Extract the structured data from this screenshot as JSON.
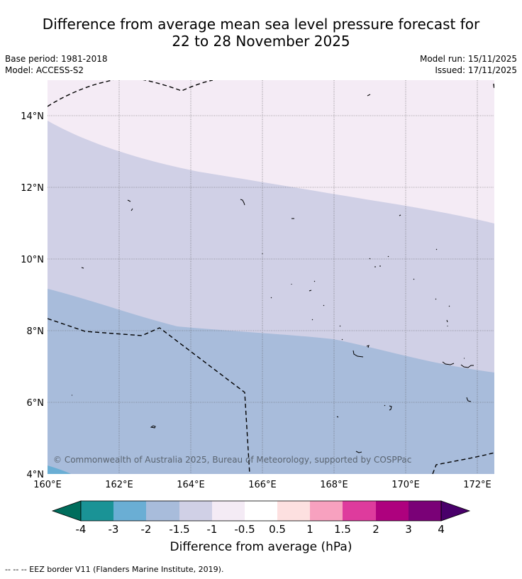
{
  "header": {
    "title_line1": "Difference from average mean sea level pressure forecast for",
    "title_line2": "22 to 28 November 2025",
    "base_period": "Base period: 1981-2018",
    "model": "Model: ACCESS-S2",
    "model_run": "Model run: 15/11/2025",
    "issued": "Issued: 17/11/2025"
  },
  "map": {
    "lon_labels": [
      "160°E",
      "162°E",
      "164°E",
      "166°E",
      "168°E",
      "170°E",
      "172°E"
    ],
    "lat_labels": [
      "14°N",
      "12°N",
      "10°N",
      "8°N",
      "6°N",
      "4°N"
    ],
    "copyright": "© Commonwealth of Australia 2025, Bureau of Meteorology, supported by COSPPac",
    "zone_colors": {
      "n1_to_n05": "#f4ebf5",
      "n15_to_n1": "#d0d0e6",
      "n2_to_n15": "#a8bcdb",
      "n3_to_n2": "#6aaed4"
    }
  },
  "colorbar": {
    "labels": [
      "-4",
      "-3",
      "-2",
      "-1.5",
      "-1",
      "-0.5",
      "0.5",
      "1",
      "1.5",
      "2",
      "3",
      "4"
    ],
    "colors": [
      "#1a9396",
      "#6aaed4",
      "#a8bcdb",
      "#d0d0e6",
      "#f4ebf5",
      "#ffffff",
      "#fde0e0",
      "#f7a1bf",
      "#de3b9d",
      "#ae017e",
      "#7a0177"
    ],
    "under_color": "#006d5c",
    "over_color": "#49006a",
    "title": "Difference from average (hPa)"
  },
  "footer": {
    "legend": "--  --  -- EEZ border V11 (Flanders Marine Institute, 2019)."
  }
}
